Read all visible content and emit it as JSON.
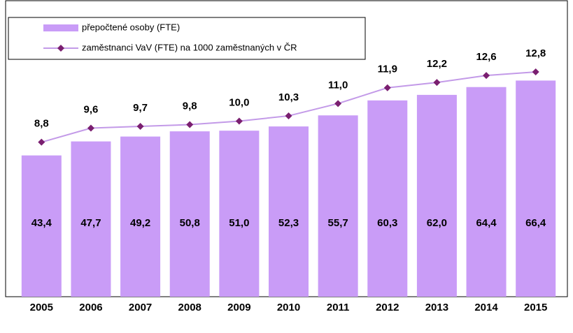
{
  "chart_data": {
    "type": "bar-line",
    "categories": [
      "2005",
      "2006",
      "2007",
      "2008",
      "2009",
      "2010",
      "2011",
      "2012",
      "2013",
      "2014",
      "2015"
    ],
    "series": [
      {
        "name": "přepočtené osoby (FTE)",
        "type": "bar",
        "color": "#c99cf7",
        "values": [
          43.4,
          47.7,
          49.2,
          50.8,
          51.0,
          52.3,
          55.7,
          60.3,
          62.0,
          64.4,
          66.4
        ],
        "value_labels": [
          "43,4",
          "47,7",
          "49,2",
          "50,8",
          "51,0",
          "52,3",
          "55,7",
          "60,3",
          "62,0",
          "64,4",
          "66,4"
        ]
      },
      {
        "name": "zaměstnanci VaV (FTE) na 1000 zaměstnaných v ČR",
        "type": "line",
        "axis": "y2",
        "color": "#c39ae8",
        "marker_color": "#7a1f70",
        "values": [
          8.8,
          9.6,
          9.7,
          9.8,
          10.0,
          10.3,
          11.0,
          11.9,
          12.2,
          12.6,
          12.8
        ],
        "value_labels": [
          "8,8",
          "9,6",
          "9,7",
          "9,8",
          "10,0",
          "10,3",
          "11,0",
          "11,9",
          "12,2",
          "12,6",
          "12,8"
        ]
      }
    ],
    "ylim": [
      0,
      89
    ],
    "y2lim": [
      0,
      16.5
    ],
    "legend": "top-left"
  }
}
